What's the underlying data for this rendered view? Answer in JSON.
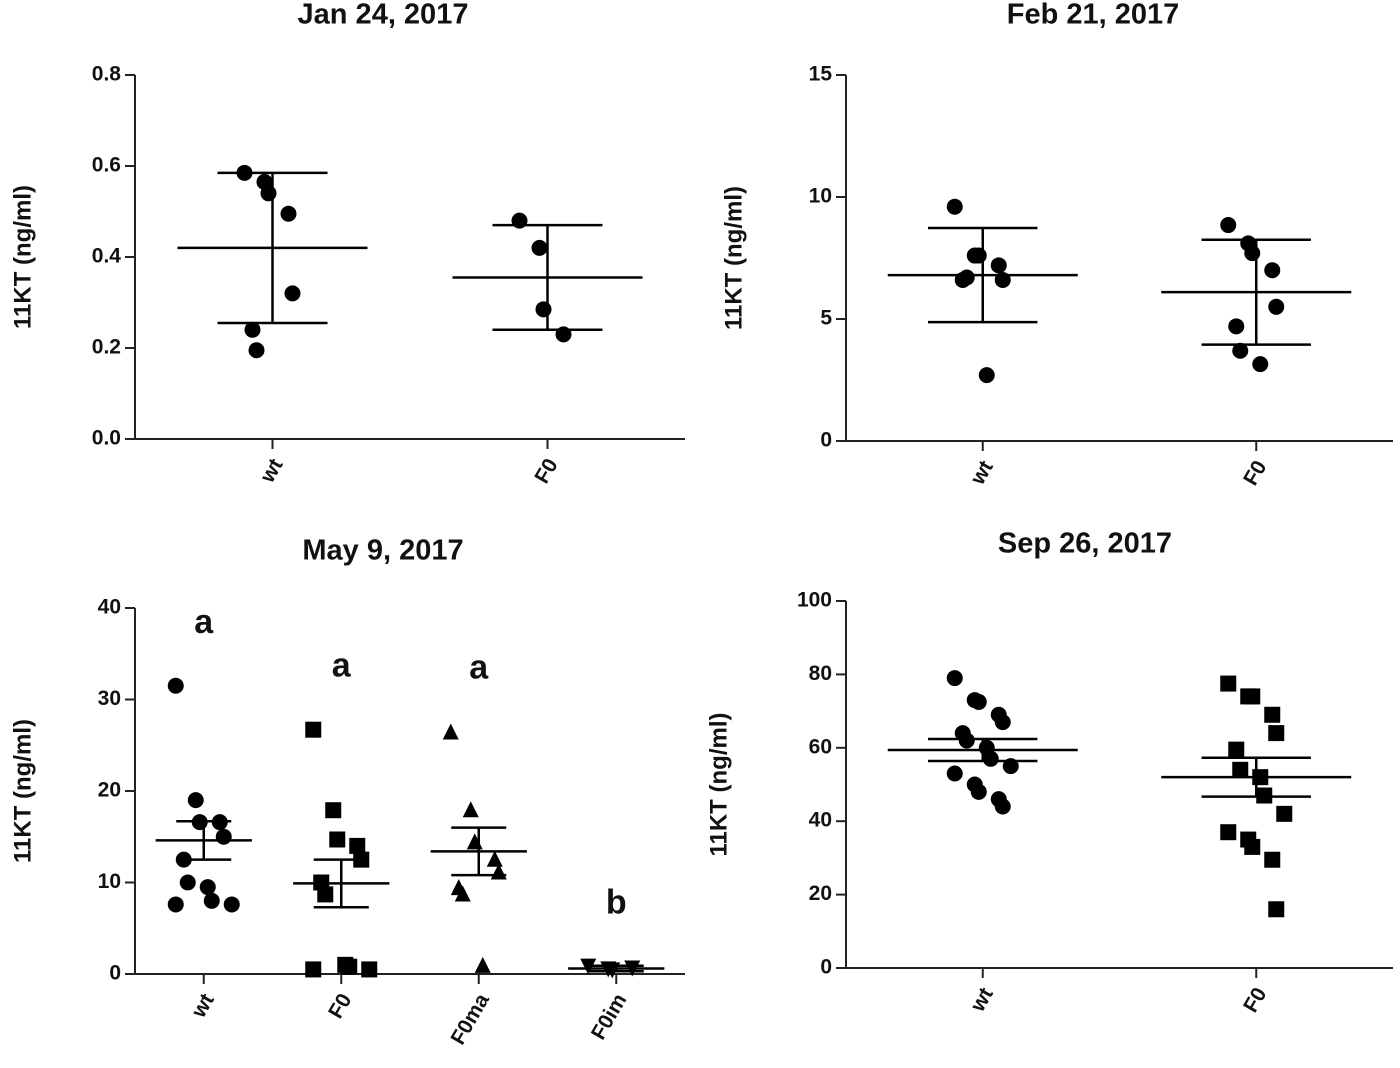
{
  "chart_data": [
    {
      "type": "dot",
      "title": "Jan 24, 2017",
      "ylabel": "11KT (ng/ml)",
      "categories": [
        "wt",
        "F0"
      ],
      "markers": [
        "circle",
        "circle"
      ],
      "color": "#000000",
      "values": [
        [
          0.585,
          0.565,
          0.54,
          0.495,
          0.32,
          0.24,
          0.195
        ],
        [
          0.48,
          0.42,
          0.285,
          0.23
        ]
      ],
      "means": [
        0.42,
        0.355
      ],
      "errors": [
        0.165,
        0.115
      ],
      "ylim": [
        0,
        0.8
      ],
      "yticks": [
        {
          "value": 0,
          "label": "0.0"
        },
        0.2,
        0.4,
        0.6,
        0.8
      ]
    },
    {
      "type": "dot",
      "title": "Feb 21, 2017",
      "ylabel": "11KT (ng/ml)",
      "categories": [
        "wt",
        "F0"
      ],
      "markers": [
        "circle",
        "circle"
      ],
      "color": "#000000",
      "values": [
        [
          9.6,
          7.6,
          7.6,
          7.2,
          6.6,
          6.6,
          6.7,
          2.7
        ],
        [
          8.85,
          8.1,
          7.7,
          7.0,
          5.5,
          4.7,
          3.7,
          3.15
        ]
      ],
      "means": [
        6.8,
        6.1
      ],
      "errors": [
        1.93,
        2.15
      ],
      "ylim": [
        0,
        15
      ],
      "yticks": [
        0,
        5,
        10,
        15
      ]
    },
    {
      "type": "dot",
      "title": "May 9, 2017",
      "ylabel": "11KT (ng/ml)",
      "categories": [
        "wt",
        "F0",
        "F0ma",
        "F0im"
      ],
      "markers": [
        "circle",
        "square",
        "triangle",
        "triangle-down"
      ],
      "color": "#000000",
      "values": [
        [
          31.5,
          19,
          16.6,
          16.6,
          15,
          12.5,
          10,
          9.5,
          8,
          7.6,
          7.6
        ],
        [
          26.7,
          17.9,
          14.7,
          14,
          12.5,
          10,
          8.7,
          1,
          0.8,
          0.5,
          0.5
        ],
        [
          26.5,
          18,
          14.5,
          12.6,
          11.2,
          9.5,
          8.8,
          1
        ],
        [
          0.8,
          0.5,
          0.4,
          0.6
        ]
      ],
      "means": [
        14.6,
        9.9,
        13.4,
        0.6
      ],
      "errors": [
        2.1,
        2.6,
        2.6,
        0.3
      ],
      "letters": [
        "a",
        "a",
        "a",
        "b"
      ],
      "ylim": [
        0,
        40
      ],
      "yticks": [
        0,
        10,
        20,
        30,
        40
      ]
    },
    {
      "type": "dot",
      "title": "Sep 26, 2017",
      "ylabel": "11KT (ng/ml)",
      "categories": [
        "wt",
        "F0"
      ],
      "markers": [
        "circle",
        "square"
      ],
      "color": "#000000",
      "values": [
        [
          79,
          73,
          72.5,
          69,
          67,
          64,
          62,
          60,
          57,
          55,
          53,
          50,
          48,
          46,
          44
        ],
        [
          77.5,
          74,
          74,
          69,
          64,
          59.5,
          54,
          52,
          47,
          42,
          37,
          35,
          33,
          29.5,
          16
        ]
      ],
      "means": [
        59.4,
        52
      ],
      "errors": [
        3,
        5.3
      ],
      "ylim": [
        0,
        100
      ],
      "yticks": [
        0,
        20,
        40,
        60,
        80,
        100
      ]
    }
  ]
}
